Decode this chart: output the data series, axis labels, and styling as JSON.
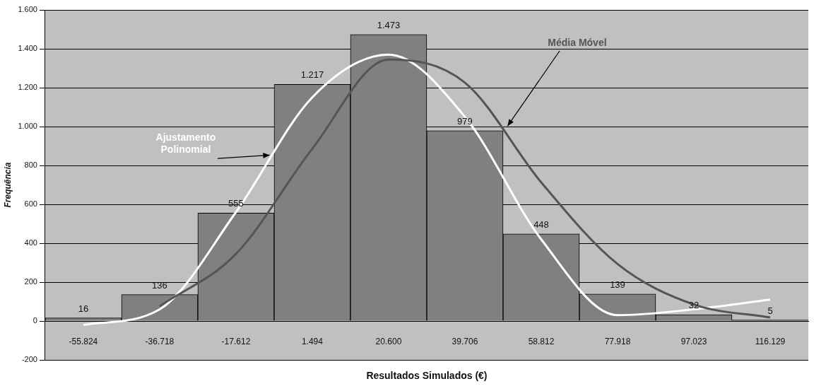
{
  "chart_data": {
    "type": "bar",
    "xlabel": "Resultados Simulados (€)",
    "ylabel": "Frequência",
    "categories": [
      "-55.824",
      "-36.718",
      "-17.612",
      "1.494",
      "20.600",
      "39.706",
      "58.812",
      "77.918",
      "97.023",
      "116.129"
    ],
    "series": [
      {
        "color": "#808080",
        "values": [
          16,
          136,
          555,
          1217,
          1473,
          979,
          448,
          139,
          32,
          5
        ],
        "value_labels": [
          "16",
          "136",
          "555",
          "1.217",
          "1.473",
          "979",
          "448",
          "139",
          "32",
          "5"
        ]
      },
      {
        "type": "line",
        "name": "Média Móvel",
        "color": "#555555",
        "values": [
          null,
          76,
          345,
          886,
          1345,
          1226,
          713,
          293,
          85,
          18
        ]
      },
      {
        "type": "line",
        "name": "Ajustamento Polinomial",
        "color": "#ffffff",
        "values": [
          -20,
          60,
          560,
          1150,
          1370,
          1050,
          420,
          30,
          60,
          110
        ]
      }
    ],
    "ylim": [
      -200,
      1600
    ],
    "yticks": [
      {
        "value": -200,
        "label": "-200"
      },
      0,
      200,
      400,
      600,
      800,
      {
        "value": 1000,
        "label": "1.000"
      },
      {
        "value": 1200,
        "label": "1.200"
      },
      {
        "value": 1400,
        "label": "1.400"
      },
      {
        "value": 1600,
        "label": "1.600"
      }
    ],
    "grid": "y",
    "legend": false,
    "marker": "none"
  }
}
